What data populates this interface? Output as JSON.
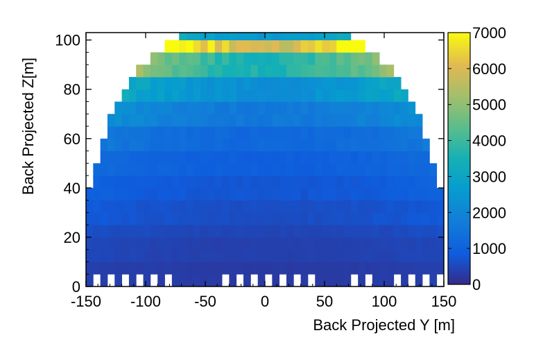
{
  "chart_data": {
    "type": "heatmap",
    "title": "",
    "xlabel": "Back Projected Y [m]",
    "ylabel": "Back Projected Z[m]",
    "xlim": [
      -150,
      150
    ],
    "ylim": [
      0,
      103
    ],
    "xticks": [
      -150,
      -100,
      -50,
      0,
      50,
      100,
      150
    ],
    "yticks": [
      0,
      20,
      40,
      60,
      80,
      100
    ],
    "colorbar": {
      "min": 0,
      "max": 7000,
      "ticks": [
        0,
        1000,
        2000,
        3000,
        4000,
        5000,
        6000,
        7000
      ],
      "colormap": "parula"
    },
    "bin_width_y": 6,
    "bin_height_z": 5,
    "grid": false,
    "bins_summary": {
      "z_rows": [
        {
          "z": [
            0,
            5
          ],
          "y_extent": [
            -150,
            150
          ],
          "value": 300
        },
        {
          "z": [
            5,
            10
          ],
          "y_extent": [
            -150,
            150
          ],
          "value": 300
        },
        {
          "z": [
            10,
            20
          ],
          "y_extent": [
            -150,
            150
          ],
          "value": 400
        },
        {
          "z": [
            20,
            25
          ],
          "y_extent": [
            -145,
            145
          ],
          "value": 500
        },
        {
          "z": [
            25,
            35
          ],
          "y_extent": [
            -145,
            145
          ],
          "value": 650
        },
        {
          "z": [
            35,
            45
          ],
          "y_extent": [
            -140,
            140
          ],
          "value": 800
        },
        {
          "z": [
            45,
            55
          ],
          "y_extent": [
            -136,
            136
          ],
          "value": 1000
        },
        {
          "z": [
            55,
            65
          ],
          "y_extent": [
            -130,
            130
          ],
          "value": 1300
        },
        {
          "z": [
            65,
            75
          ],
          "y_extent": [
            -123,
            123
          ],
          "value": 1800
        },
        {
          "z": [
            75,
            85
          ],
          "y_extent": [
            -115,
            115
          ],
          "value": 2500
        },
        {
          "z": [
            85,
            95
          ],
          "y_extent": [
            -100,
            100
          ],
          "value": 4000
        },
        {
          "z": [
            95,
            100
          ],
          "y_extent": [
            -85,
            85
          ],
          "value": 6500
        },
        {
          "z": [
            100,
            105
          ],
          "y_extent": [
            -72,
            72
          ],
          "value": 2800
        }
      ],
      "hotspots": [
        {
          "y": -55,
          "z": 97,
          "value": 7000
        },
        {
          "y": 45,
          "z": 97,
          "value": 7000
        }
      ]
    },
    "colors": {
      "low": "#352a87",
      "mid": "#0fa9c8",
      "high": "#f9fb0e",
      "background": "#ffffff"
    }
  }
}
